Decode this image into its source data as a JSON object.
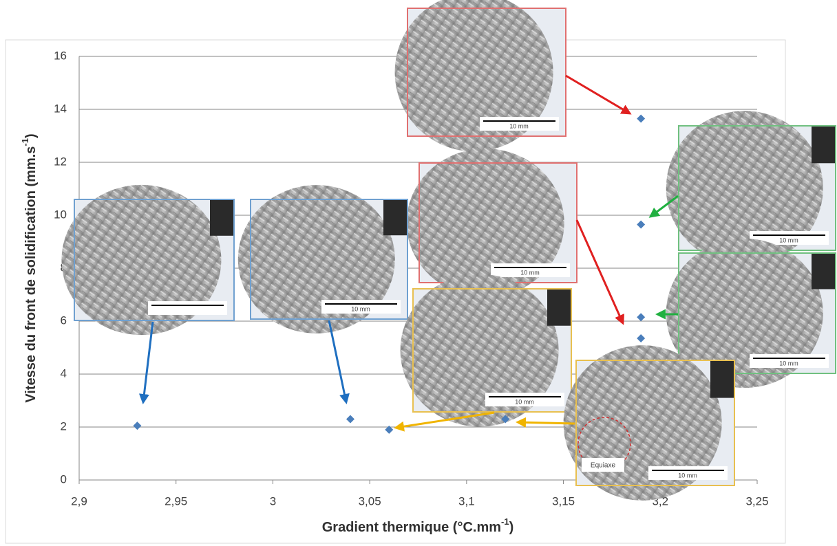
{
  "chart_data": {
    "type": "scatter",
    "x_label": {
      "text": "Gradient thermique (°C.mm",
      "sup": "-1",
      "tail": ")"
    },
    "y_label": {
      "text": "Vitesse du front de solidification (mm.s",
      "sup": "-1",
      "tail": ")"
    },
    "x": [
      2.93,
      3.04,
      3.06,
      3.12,
      3.19,
      3.19,
      3.19,
      3.19
    ],
    "values": [
      2.05,
      2.3,
      1.9,
      2.3,
      13.65,
      9.65,
      6.15,
      5.35
    ],
    "color": "#4a7ebb",
    "xlim": [
      2.9,
      3.25
    ],
    "xticks": [
      {
        "value": 2.9,
        "label": "2,9"
      },
      {
        "value": 2.95,
        "label": "2,95"
      },
      3,
      {
        "value": 3.05,
        "label": "3,05"
      },
      {
        "value": 3.1,
        "label": "3,1"
      },
      {
        "value": 3.15,
        "label": "3,15"
      },
      {
        "value": 3.2,
        "label": "3,2"
      },
      {
        "value": 3.25,
        "label": "3,25"
      }
    ],
    "ylim": [
      0,
      16
    ],
    "yticks": [
      0,
      2,
      4,
      6,
      8,
      10,
      12,
      14,
      16
    ],
    "grid": true,
    "annotations": [
      "10 mm",
      "10 mm",
      "10 mm",
      "10 mm",
      "10 mm",
      "10 mm",
      "10 mm",
      "Equiaxe"
    ]
  }
}
